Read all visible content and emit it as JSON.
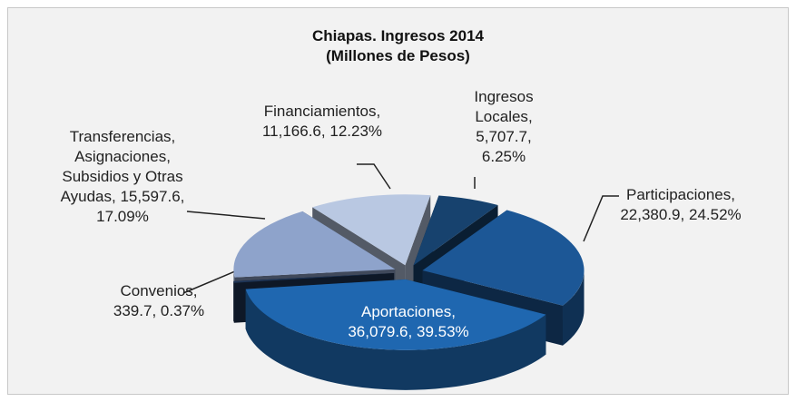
{
  "chart_data": {
    "type": "pie3d",
    "title": "Chiapas. Ingresos 2014",
    "subtitle": "(Millones de Pesos)",
    "categories": [
      "Ingresos Locales",
      "Participaciones",
      "Aportaciones",
      "Convenios",
      "Transferencias, Asignaciones, Subsidios y Otras Ayudas",
      "Financiamientos"
    ],
    "values": [
      5707.7,
      22380.9,
      36079.6,
      339.7,
      15597.6,
      11166.6
    ],
    "value_labels": [
      "5,707.7",
      "22,380.9",
      "36,079.6",
      "339.7",
      "15,597.6",
      "11,166.6"
    ],
    "percentages": [
      6.25,
      24.52,
      39.53,
      0.37,
      17.09,
      12.23
    ],
    "percent_labels": [
      "6.25%",
      "24.52%",
      "39.53%",
      "0.37%",
      "17.09%",
      "12.23%"
    ],
    "colors": [
      "#17426e",
      "#1c5796",
      "#1f67b0",
      "#1e3557",
      "#8ea3cb",
      "#b9c8e2"
    ]
  }
}
